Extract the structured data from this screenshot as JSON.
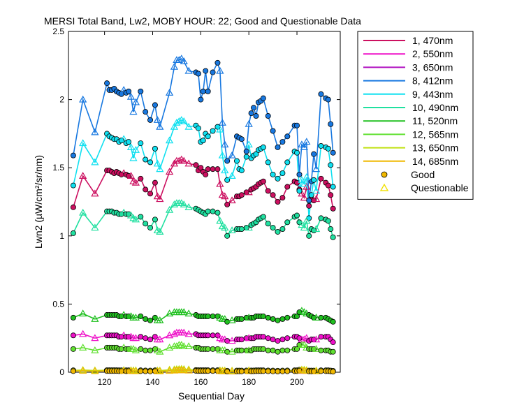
{
  "chart_data": {
    "type": "line",
    "title": "MERSI Total Band, Lw2, MOBY HOUR: 22;  Good and Questionable Data",
    "xlabel": "Sequential Day",
    "ylabel": "Lwn2 (µW/cm²/sr/nm)",
    "xlim": [
      105,
      218
    ],
    "ylim": [
      0,
      2.5
    ],
    "xticks": [
      120,
      140,
      160,
      180,
      200
    ],
    "yticks": [
      0,
      0.5,
      1,
      1.5,
      2,
      2.5
    ],
    "ytick_labels": [
      "0",
      "0.5",
      "1",
      "1.5",
      "2",
      "2.5"
    ],
    "x": [
      107,
      111,
      116,
      121,
      122,
      123,
      124,
      125,
      126,
      127,
      128,
      129,
      130,
      131,
      132,
      133,
      135,
      137,
      139,
      141,
      142,
      143,
      147,
      149,
      150,
      151,
      152,
      153,
      155,
      158,
      159,
      160,
      161,
      162,
      163,
      165,
      167,
      168,
      169,
      170,
      171,
      173,
      175,
      176,
      177,
      179,
      180,
      181,
      182,
      183,
      184,
      185,
      186,
      188,
      190,
      192,
      194,
      196,
      199,
      200,
      201,
      202,
      203,
      204,
      205,
      206,
      207,
      208,
      210,
      212,
      213,
      214,
      215
    ],
    "marker_types": [
      "G",
      "Q",
      "Q",
      "G",
      "G",
      "G",
      "G",
      "G",
      "G",
      "G",
      "Q",
      "G",
      "G",
      "Q",
      "Q",
      "Q",
      "G",
      "G",
      "G",
      "G",
      "Q",
      "Q",
      "Q",
      "Q",
      "Q",
      "Q",
      "Q",
      "Q",
      "Q",
      "G",
      "G",
      "G",
      "G",
      "G",
      "G",
      "G",
      "G",
      "Q",
      "Q",
      "Q",
      "G",
      "Q",
      "G",
      "G",
      "G",
      "G",
      "Q",
      "G",
      "G",
      "G",
      "G",
      "G",
      "G",
      "G",
      "G",
      "G",
      "G",
      "G",
      "G",
      "G",
      "G",
      "Q",
      "Q",
      "Q",
      "G",
      "G",
      "G",
      "Q",
      "G",
      "G",
      "G",
      "G",
      "G"
    ],
    "series": [
      {
        "name": "1, 470nm",
        "color": "#cc1060",
        "values": [
          1.21,
          1.44,
          1.31,
          1.48,
          1.48,
          1.47,
          1.46,
          1.47,
          1.46,
          1.45,
          1.46,
          1.45,
          1.44,
          1.44,
          1.4,
          1.39,
          1.42,
          1.34,
          1.31,
          1.39,
          1.29,
          1.27,
          1.47,
          1.53,
          1.55,
          1.55,
          1.56,
          1.55,
          1.53,
          1.52,
          1.48,
          1.5,
          1.47,
          1.45,
          1.49,
          1.49,
          1.49,
          1.38,
          1.3,
          1.29,
          1.23,
          1.26,
          1.29,
          1.29,
          1.3,
          1.32,
          1.32,
          1.34,
          1.35,
          1.36,
          1.38,
          1.39,
          1.4,
          1.33,
          1.3,
          1.25,
          1.28,
          1.36,
          1.4,
          1.39,
          1.34,
          1.31,
          1.28,
          1.36,
          1.22,
          1.27,
          1.26,
          1.27,
          1.42,
          1.39,
          1.37,
          1.3,
          1.2
        ]
      },
      {
        "name": "2, 550nm",
        "color": "#ee10c8",
        "values": [
          0.27,
          0.28,
          0.25,
          0.27,
          0.27,
          0.27,
          0.27,
          0.27,
          0.26,
          0.26,
          0.27,
          0.26,
          0.26,
          0.26,
          0.25,
          0.25,
          0.26,
          0.25,
          0.24,
          0.26,
          0.24,
          0.24,
          0.27,
          0.28,
          0.29,
          0.29,
          0.29,
          0.29,
          0.28,
          0.28,
          0.27,
          0.27,
          0.27,
          0.27,
          0.27,
          0.27,
          0.27,
          0.25,
          0.24,
          0.24,
          0.23,
          0.23,
          0.24,
          0.24,
          0.24,
          0.25,
          0.25,
          0.25,
          0.25,
          0.26,
          0.26,
          0.26,
          0.26,
          0.25,
          0.24,
          0.23,
          0.24,
          0.25,
          0.26,
          0.26,
          0.25,
          0.24,
          0.24,
          0.25,
          0.23,
          0.24,
          0.24,
          0.24,
          0.26,
          0.26,
          0.26,
          0.24,
          0.22
        ]
      },
      {
        "name": "3, 650nm",
        "color": "#b010c0",
        "values": [
          0.012,
          0.014,
          0.011,
          0.013,
          0.013,
          0.013,
          0.013,
          0.013,
          0.012,
          0.012,
          0.013,
          0.012,
          0.012,
          0.012,
          0.011,
          0.011,
          0.012,
          0.011,
          0.01,
          0.012,
          0.01,
          0.01,
          0.013,
          0.014,
          0.015,
          0.015,
          0.015,
          0.015,
          0.014,
          0.014,
          0.013,
          0.013,
          0.013,
          0.013,
          0.013,
          0.013,
          0.013,
          0.011,
          0.01,
          0.01,
          0.009,
          0.009,
          0.01,
          0.01,
          0.01,
          0.011,
          0.011,
          0.011,
          0.011,
          0.012,
          0.012,
          0.012,
          0.012,
          0.011,
          0.01,
          0.009,
          0.01,
          0.011,
          0.012,
          0.012,
          0.011,
          0.01,
          0.01,
          0.011,
          0.009,
          0.01,
          0.01,
          0.01,
          0.012,
          0.012,
          0.012,
          0.01,
          0.008
        ]
      },
      {
        "name": "8, 412nm",
        "color": "#1878e0",
        "values": [
          1.59,
          2.0,
          1.76,
          2.12,
          2.07,
          2.07,
          2.08,
          2.06,
          2.05,
          2.04,
          2.07,
          2.05,
          2.06,
          2.02,
          1.91,
          1.98,
          2.06,
          1.91,
          1.85,
          1.96,
          1.85,
          1.8,
          2.05,
          2.24,
          2.29,
          2.29,
          2.3,
          2.28,
          2.21,
          2.2,
          2.19,
          2.0,
          2.06,
          2.21,
          2.06,
          2.2,
          2.27,
          2.21,
          1.83,
          1.67,
          1.55,
          1.59,
          1.73,
          1.72,
          1.71,
          1.62,
          1.82,
          1.9,
          1.94,
          1.88,
          1.98,
          1.99,
          2.01,
          1.88,
          1.77,
          1.65,
          1.69,
          1.73,
          1.81,
          1.81,
          1.45,
          1.67,
          1.65,
          1.69,
          1.26,
          1.4,
          1.6,
          1.49,
          2.04,
          2.01,
          2.0,
          1.82,
          1.61
        ]
      },
      {
        "name": "9, 443nm",
        "color": "#10e0f0",
        "values": [
          1.37,
          1.68,
          1.54,
          1.75,
          1.73,
          1.72,
          1.71,
          1.71,
          1.69,
          1.7,
          1.71,
          1.68,
          1.69,
          1.65,
          1.57,
          1.63,
          1.68,
          1.56,
          1.54,
          1.64,
          1.53,
          1.49,
          1.7,
          1.8,
          1.83,
          1.84,
          1.85,
          1.84,
          1.8,
          1.81,
          1.79,
          1.69,
          1.7,
          1.75,
          1.73,
          1.77,
          1.8,
          1.78,
          1.59,
          1.48,
          1.41,
          1.44,
          1.55,
          1.49,
          1.48,
          1.58,
          1.67,
          1.57,
          1.59,
          1.6,
          1.63,
          1.64,
          1.65,
          1.54,
          1.45,
          1.42,
          1.46,
          1.54,
          1.62,
          1.61,
          1.33,
          1.41,
          1.38,
          1.43,
          1.13,
          1.3,
          1.41,
          1.33,
          1.66,
          1.65,
          1.64,
          1.52,
          1.36
        ]
      },
      {
        "name": "10, 490nm",
        "color": "#20e0a0",
        "values": [
          1.02,
          1.17,
          1.06,
          1.18,
          1.18,
          1.18,
          1.17,
          1.17,
          1.16,
          1.16,
          1.17,
          1.16,
          1.16,
          1.15,
          1.13,
          1.12,
          1.14,
          1.09,
          1.06,
          1.12,
          1.04,
          1.03,
          1.19,
          1.23,
          1.24,
          1.24,
          1.24,
          1.23,
          1.21,
          1.2,
          1.19,
          1.18,
          1.17,
          1.16,
          1.18,
          1.18,
          1.17,
          1.11,
          1.07,
          1.06,
          1.0,
          1.04,
          1.05,
          1.05,
          1.05,
          1.06,
          1.06,
          1.08,
          1.09,
          1.1,
          1.12,
          1.13,
          1.14,
          1.09,
          1.06,
          1.03,
          1.05,
          1.1,
          1.14,
          1.15,
          1.1,
          1.08,
          1.06,
          1.11,
          1.0,
          1.05,
          1.04,
          1.05,
          1.13,
          1.12,
          1.11,
          1.05,
          0.99
        ]
      },
      {
        "name": "11, 520nm",
        "color": "#20c020",
        "values": [
          0.4,
          0.43,
          0.39,
          0.42,
          0.42,
          0.42,
          0.42,
          0.42,
          0.41,
          0.41,
          0.42,
          0.41,
          0.41,
          0.41,
          0.4,
          0.4,
          0.41,
          0.39,
          0.38,
          0.4,
          0.38,
          0.38,
          0.43,
          0.44,
          0.44,
          0.44,
          0.44,
          0.44,
          0.43,
          0.42,
          0.41,
          0.41,
          0.41,
          0.41,
          0.41,
          0.41,
          0.41,
          0.4,
          0.39,
          0.39,
          0.37,
          0.38,
          0.39,
          0.39,
          0.39,
          0.4,
          0.4,
          0.4,
          0.4,
          0.41,
          0.41,
          0.41,
          0.41,
          0.4,
          0.39,
          0.38,
          0.39,
          0.4,
          0.41,
          0.41,
          0.44,
          0.45,
          0.44,
          0.43,
          0.42,
          0.41,
          0.4,
          0.4,
          0.4,
          0.4,
          0.39,
          0.38,
          0.37
        ]
      },
      {
        "name": "12, 565nm",
        "color": "#60e030",
        "values": [
          0.17,
          0.18,
          0.16,
          0.18,
          0.18,
          0.18,
          0.18,
          0.18,
          0.17,
          0.17,
          0.18,
          0.17,
          0.17,
          0.17,
          0.17,
          0.16,
          0.17,
          0.16,
          0.16,
          0.17,
          0.16,
          0.15,
          0.18,
          0.19,
          0.19,
          0.2,
          0.2,
          0.19,
          0.19,
          0.18,
          0.18,
          0.17,
          0.17,
          0.17,
          0.17,
          0.17,
          0.17,
          0.16,
          0.16,
          0.16,
          0.15,
          0.15,
          0.16,
          0.16,
          0.16,
          0.16,
          0.16,
          0.16,
          0.17,
          0.17,
          0.17,
          0.17,
          0.17,
          0.16,
          0.16,
          0.15,
          0.16,
          0.16,
          0.17,
          0.17,
          0.2,
          0.2,
          0.2,
          0.18,
          0.17,
          0.17,
          0.17,
          0.17,
          0.16,
          0.16,
          0.16,
          0.15,
          0.15
        ]
      },
      {
        "name": "13, 650nm",
        "color": "#c0e010",
        "values": [
          0.014,
          0.016,
          0.013,
          0.015,
          0.015,
          0.015,
          0.015,
          0.015,
          0.014,
          0.014,
          0.015,
          0.014,
          0.014,
          0.014,
          0.013,
          0.013,
          0.014,
          0.013,
          0.012,
          0.014,
          0.012,
          0.012,
          0.018,
          0.02,
          0.022,
          0.023,
          0.024,
          0.022,
          0.02,
          0.016,
          0.015,
          0.015,
          0.015,
          0.015,
          0.015,
          0.015,
          0.015,
          0.013,
          0.012,
          0.012,
          0.011,
          0.011,
          0.012,
          0.012,
          0.012,
          0.013,
          0.013,
          0.013,
          0.013,
          0.014,
          0.014,
          0.014,
          0.014,
          0.013,
          0.012,
          0.011,
          0.012,
          0.013,
          0.014,
          0.014,
          0.018,
          0.019,
          0.018,
          0.015,
          0.012,
          0.012,
          0.012,
          0.012,
          0.014,
          0.014,
          0.014,
          0.012,
          0.01
        ]
      },
      {
        "name": "14, 685nm",
        "color": "#f0b800",
        "values": [
          0.008,
          0.01,
          0.007,
          0.009,
          0.009,
          0.009,
          0.009,
          0.009,
          0.008,
          0.008,
          0.009,
          0.008,
          0.008,
          0.008,
          0.007,
          0.007,
          0.008,
          0.007,
          0.006,
          0.008,
          0.006,
          0.006,
          0.01,
          0.012,
          0.014,
          0.015,
          0.016,
          0.014,
          0.012,
          0.01,
          0.009,
          0.009,
          0.009,
          0.009,
          0.009,
          0.009,
          0.009,
          0.007,
          0.006,
          0.006,
          0.005,
          0.005,
          0.006,
          0.006,
          0.006,
          0.007,
          0.007,
          0.007,
          0.007,
          0.008,
          0.008,
          0.008,
          0.008,
          0.007,
          0.006,
          0.005,
          0.006,
          0.007,
          0.008,
          0.008,
          0.011,
          0.012,
          0.011,
          0.009,
          0.006,
          0.006,
          0.006,
          0.006,
          0.008,
          0.008,
          0.008,
          0.006,
          0.004
        ]
      }
    ],
    "legend": {
      "placement": "outside-right",
      "marker_entries": [
        {
          "label": "Good",
          "color": "#f0b800",
          "marker": "circle"
        },
        {
          "label": "Questionable",
          "color": "#f0e000",
          "marker": "triangle"
        }
      ]
    }
  }
}
